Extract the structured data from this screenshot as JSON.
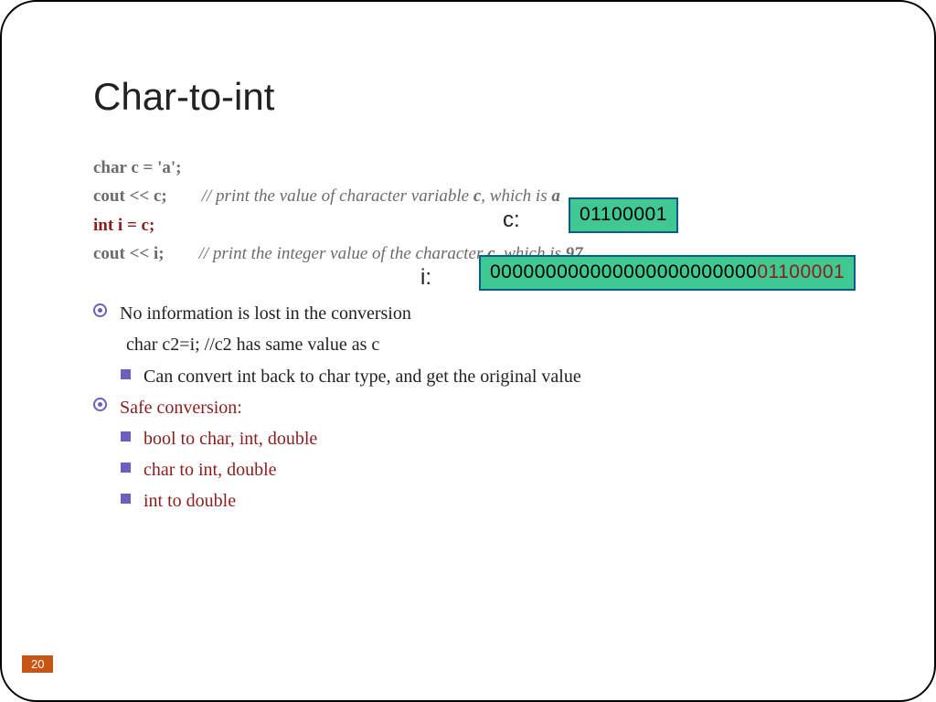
{
  "title": "Char-to-int",
  "code": {
    "l1": "char c = 'a';",
    "l2_code": "cout << c;",
    "l2_comment_a": "// print the value of character variable ",
    "l2_comment_b": "c",
    "l2_comment_c": ", which is ",
    "l2_comment_d": "a",
    "l3": "int i = c;",
    "l4_code": "cout << i;",
    "l4_comment_a": "// print the integer value of the character ",
    "l4_comment_b": "c",
    "l4_comment_c": ", which is ",
    "l4_comment_d": "97"
  },
  "labels": {
    "c": "c:",
    "i": "i:"
  },
  "bits": {
    "c_value": "01100001",
    "i_prefix": "000000000000000000000000",
    "i_suffix": "01100001",
    "box_bg": "#3fc990",
    "box_border": "#0a5c8a",
    "red": "#8a1d1d"
  },
  "bullets": {
    "b1": "No information is lost in the conversion",
    "b1_sub": "char c2=i;   //c2 has same value as c",
    "b1_sq": "Can convert int back to char type, and get the original value",
    "b2": "Safe conversion:",
    "b2_sq1": "bool to char, int, double",
    "b2_sq2": "char to int, double",
    "b2_sq3": "int to double"
  },
  "page_number": "20",
  "colors": {
    "accent_purple": "#6b5fbf",
    "text_gray": "#6b6b6b",
    "text_red": "#8a1d1d",
    "page_badge": "#c65516"
  }
}
